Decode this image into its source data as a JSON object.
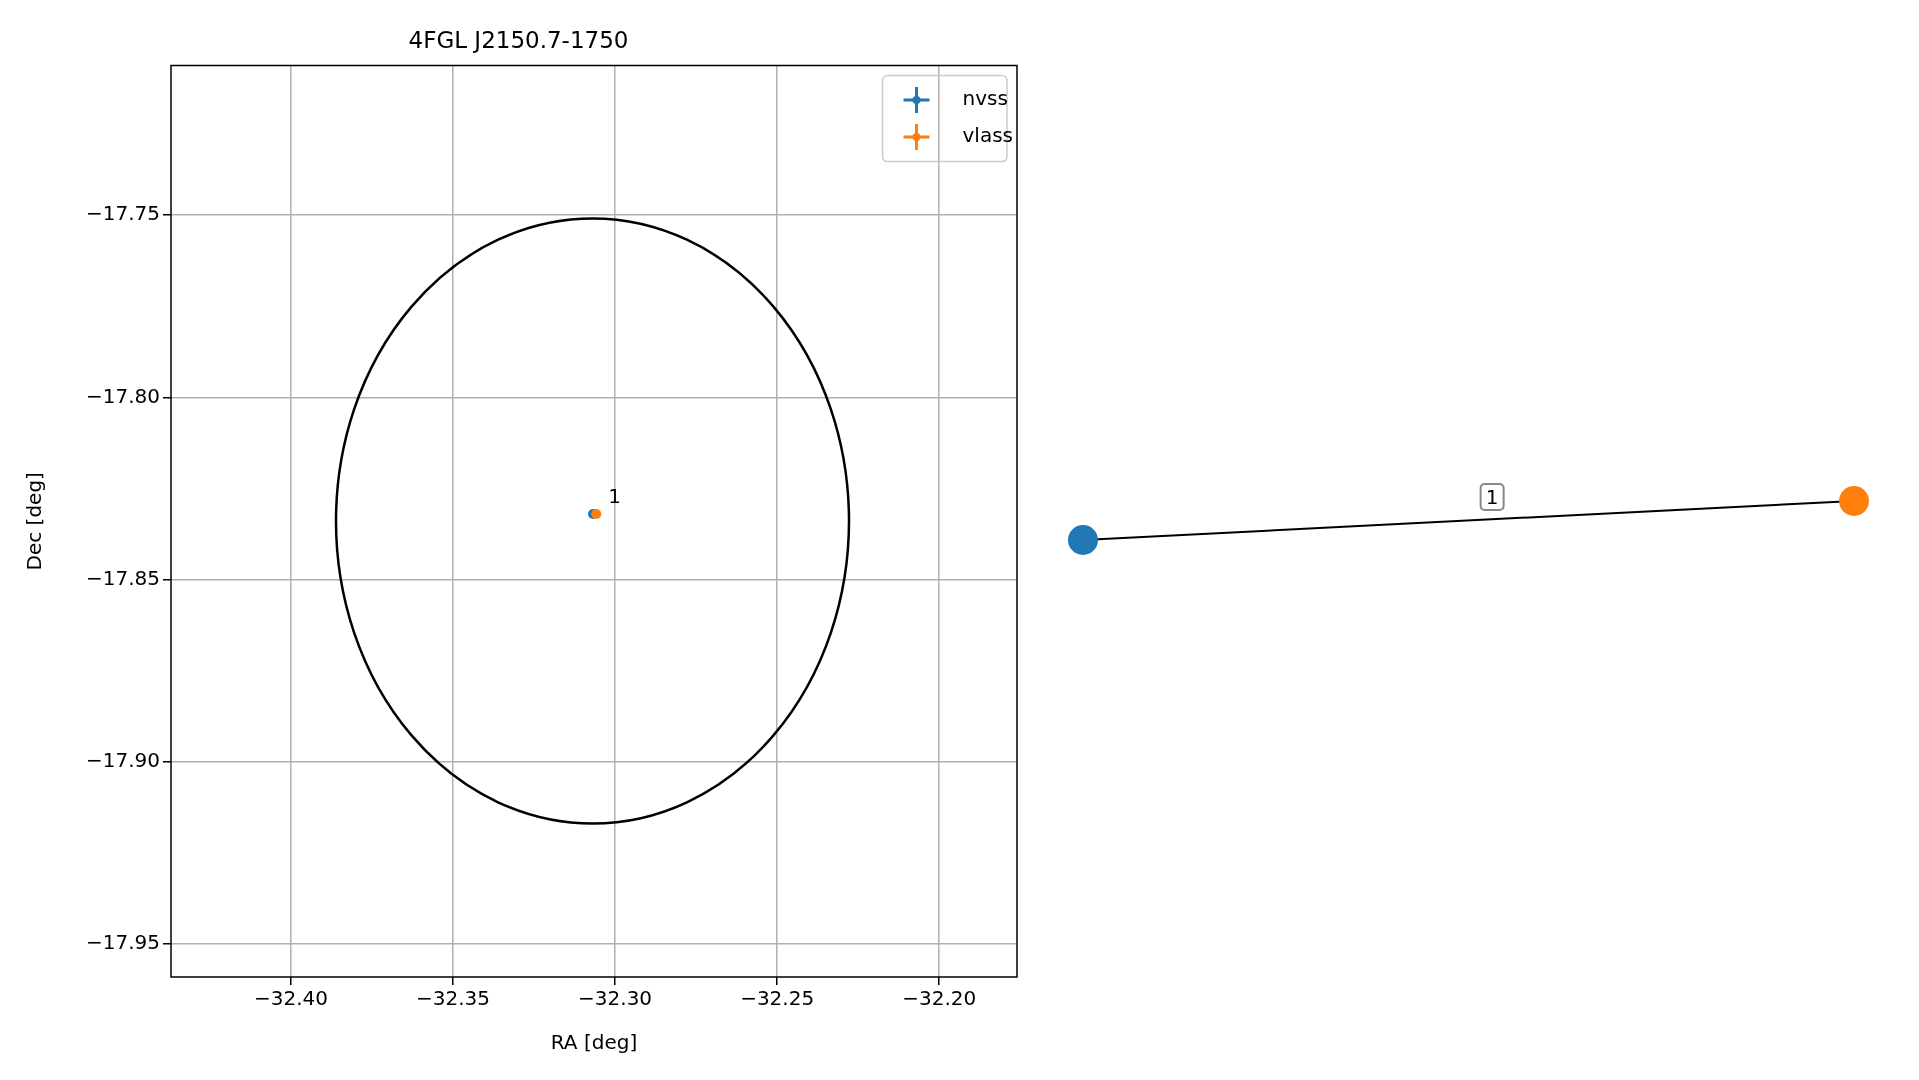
{
  "chart_data": [
    {
      "type": "scatter",
      "title": "4FGL J2150.7-1750",
      "xlabel": "RA [deg]",
      "ylabel": "Dec [deg]",
      "xlim": [
        -32.437,
        -32.176
      ],
      "ylim": [
        -17.959,
        -17.709
      ],
      "xticks": [
        {
          "value": -32.4,
          "label": "−32.40"
        },
        {
          "value": -32.35,
          "label": "−32.35"
        },
        {
          "value": -32.3,
          "label": "−32.30"
        },
        {
          "value": -32.25,
          "label": "−32.25"
        },
        {
          "value": -32.2,
          "label": "−32.20"
        }
      ],
      "yticks": [
        {
          "value": -17.95,
          "label": "−17.95"
        },
        {
          "value": -17.9,
          "label": "−17.90"
        },
        {
          "value": -17.85,
          "label": "−17.85"
        },
        {
          "value": -17.8,
          "label": "−17.80"
        },
        {
          "value": -17.75,
          "label": "−17.75"
        }
      ],
      "grid": true,
      "legend": "top right",
      "marker": "circle",
      "annotations": [
        {
          "text": "1",
          "x": -32.3058,
          "y": -17.832
        }
      ],
      "series": [
        {
          "name": "nvss",
          "color": "#1f77b4",
          "x": [
            -32.3068
          ],
          "values": [
            -17.832
          ]
        },
        {
          "name": "vlass",
          "color": "#ff7f0e",
          "x": [
            -32.3058
          ],
          "values": [
            -17.832
          ]
        }
      ]
    },
    {
      "type": "other",
      "annotations": [
        "1"
      ]
    }
  ]
}
